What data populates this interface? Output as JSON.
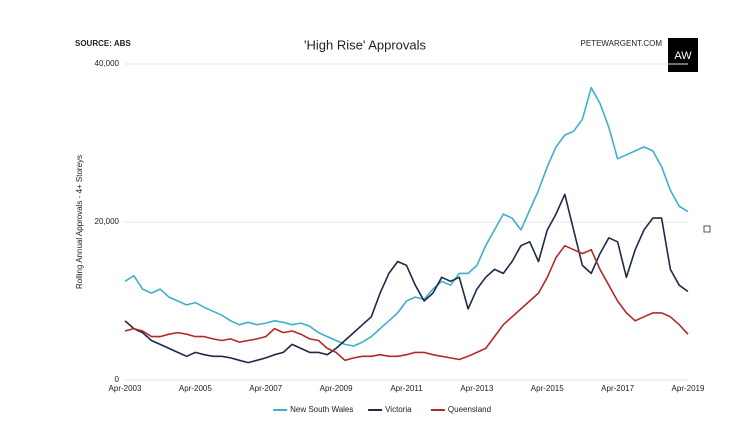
{
  "chart_data": {
    "type": "line",
    "title": "'High Rise' Approvals",
    "source": "SOURCE: ABS",
    "brand": "PETEWARGENT.COM",
    "logo": "AW",
    "y_label": "Rolling Annual Approvals - 4+ Storeys",
    "categories": [
      "Apr-2003",
      null,
      null,
      null,
      null,
      null,
      null,
      null,
      "Apr-2005",
      null,
      null,
      null,
      null,
      null,
      null,
      null,
      "Apr-2007",
      null,
      null,
      null,
      null,
      null,
      null,
      null,
      "Apr-2009",
      null,
      null,
      null,
      null,
      null,
      null,
      null,
      "Apr-2011",
      null,
      null,
      null,
      null,
      null,
      null,
      null,
      "Apr-2013",
      null,
      null,
      null,
      null,
      null,
      null,
      null,
      "Apr-2015",
      null,
      null,
      null,
      null,
      null,
      null,
      null,
      "Apr-2017",
      null,
      null,
      null,
      null,
      null,
      null,
      null,
      "Apr-2019"
    ],
    "series": [
      {
        "name": "New South Wales",
        "color": "#3fb0c9",
        "values": [
          12500,
          13200,
          11500,
          11000,
          11500,
          10500,
          10000,
          9500,
          9800,
          9200,
          8700,
          8200,
          7500,
          7000,
          7300,
          7000,
          7200,
          7500,
          7300,
          7000,
          7200,
          6800,
          6000,
          5500,
          5000,
          4500,
          4300,
          4800,
          5500,
          6500,
          7500,
          8500,
          10000,
          10500,
          10200,
          11500,
          12500,
          12000,
          13500,
          13500,
          14500,
          17000,
          19000,
          21000,
          20500,
          19000,
          21500,
          24000,
          27000,
          29500,
          31000,
          31500,
          33000,
          37000,
          35000,
          32000,
          28000,
          28500,
          29000,
          29500,
          29000,
          27000,
          24000,
          22000,
          21300
        ]
      },
      {
        "name": "Victoria",
        "color": "#1f2a48",
        "values": [
          7500,
          6500,
          6000,
          5000,
          4500,
          4000,
          3500,
          3000,
          3500,
          3200,
          3000,
          3000,
          2800,
          2500,
          2200,
          2500,
          2800,
          3200,
          3500,
          4500,
          4000,
          3500,
          3500,
          3200,
          4000,
          5000,
          6000,
          7000,
          8000,
          11000,
          13500,
          15000,
          14500,
          12000,
          10000,
          11000,
          13000,
          12500,
          13000,
          9000,
          11500,
          13000,
          14000,
          13500,
          15000,
          17000,
          17500,
          15000,
          19000,
          21000,
          23500,
          19000,
          14500,
          13500,
          16000,
          18000,
          17500,
          13000,
          16500,
          19000,
          20500,
          20500,
          14000,
          12000,
          11200
        ]
      },
      {
        "name": "Queensland",
        "color": "#b22a2a",
        "values": [
          6200,
          6500,
          6200,
          5500,
          5500,
          5800,
          6000,
          5800,
          5500,
          5500,
          5200,
          5000,
          5200,
          4800,
          5000,
          5200,
          5500,
          6500,
          6000,
          6200,
          5800,
          5200,
          5000,
          4000,
          3500,
          2500,
          2800,
          3000,
          3000,
          3200,
          3000,
          3000,
          3200,
          3500,
          3500,
          3200,
          3000,
          2800,
          2600,
          3000,
          3500,
          4000,
          5500,
          7000,
          8000,
          9000,
          10000,
          11000,
          13000,
          15500,
          17000,
          16500,
          16000,
          16500,
          14000,
          12000,
          10000,
          8500,
          7500,
          8000,
          8500,
          8500,
          8000,
          7000,
          5800
        ]
      }
    ],
    "ylim": [
      0,
      40000
    ],
    "yticks": [
      0,
      {
        "value": 20000,
        "label": "20,000"
      },
      {
        "value": 40000,
        "label": "40,000"
      }
    ],
    "grid": true
  }
}
